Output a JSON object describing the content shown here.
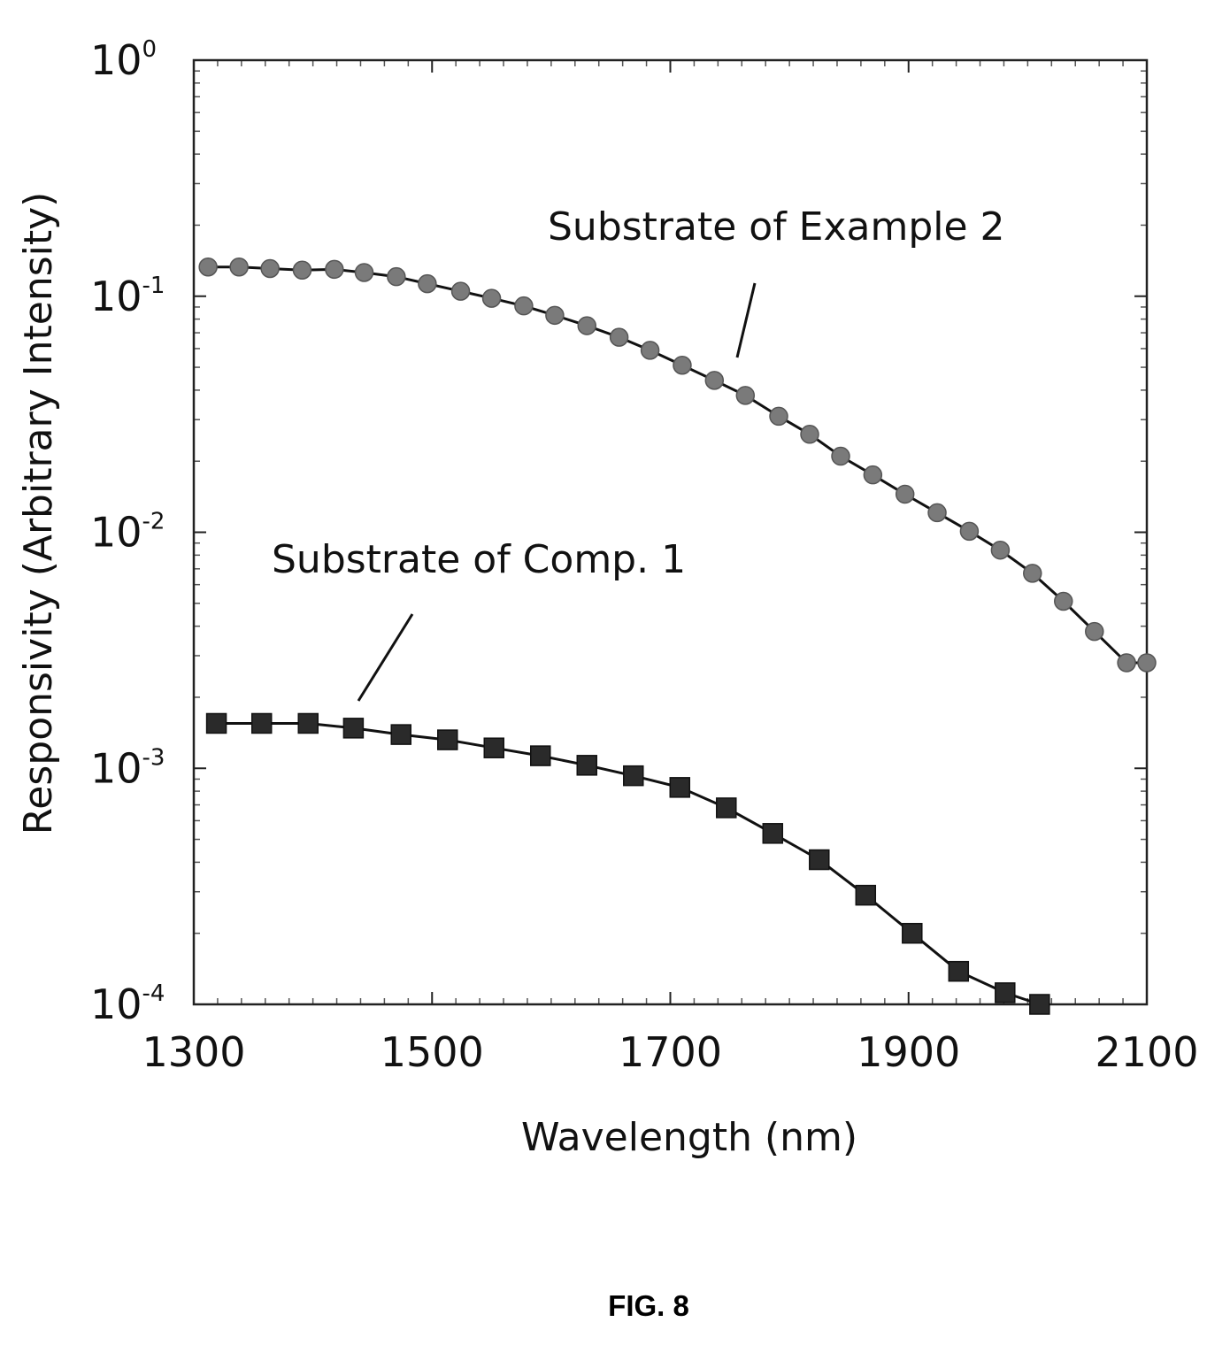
{
  "chart_data": {
    "type": "line",
    "xlabel": "Wavelength (nm)",
    "ylabel": "Responsivity (Arbitrary Intensity)",
    "xlim": [
      1300,
      2100
    ],
    "ylim": [
      0.0001,
      1
    ],
    "yscale": "log",
    "x_ticks": [
      "1300",
      "1500",
      "1700",
      "1900",
      "2100"
    ],
    "y_ticks": [
      {
        "base": "10",
        "exp": "0"
      },
      {
        "base": "10",
        "exp": "-1"
      },
      {
        "base": "10",
        "exp": "-2"
      },
      {
        "base": "10",
        "exp": "-3"
      },
      {
        "base": "10",
        "exp": "-4"
      }
    ],
    "grid": false,
    "series": [
      {
        "name": "Substrate of Example 2",
        "marker": "circle",
        "color": "#7a7a7a",
        "x": [
          1312,
          1338,
          1364,
          1391,
          1418,
          1443,
          1470,
          1496,
          1524,
          1550,
          1577,
          1603,
          1630,
          1657,
          1683,
          1710,
          1737,
          1763,
          1791,
          1817,
          1843,
          1870,
          1897,
          1924,
          1951,
          1977,
          2004,
          2030,
          2056,
          2083,
          2100
        ],
        "values": [
          0.133,
          0.133,
          0.131,
          0.129,
          0.13,
          0.126,
          0.121,
          0.113,
          0.105,
          0.098,
          0.091,
          0.083,
          0.075,
          0.067,
          0.059,
          0.051,
          0.044,
          0.038,
          0.031,
          0.026,
          0.021,
          0.0175,
          0.0145,
          0.0121,
          0.0101,
          0.0084,
          0.0067,
          0.0051,
          0.0038,
          0.0028,
          0.0028
        ]
      },
      {
        "name": "Substrate of Comp. 1",
        "marker": "square",
        "color": "#2a2a2a",
        "x": [
          1319,
          1357,
          1396,
          1434,
          1474,
          1513,
          1552,
          1591,
          1630,
          1669,
          1708,
          1747,
          1786,
          1825,
          1864,
          1903,
          1942,
          1981,
          2010
        ],
        "values": [
          0.00155,
          0.00155,
          0.00155,
          0.00148,
          0.00139,
          0.00132,
          0.00122,
          0.00113,
          0.00103,
          0.00093,
          0.00083,
          0.00068,
          0.00053,
          0.00041,
          0.00029,
          0.0002,
          0.000138,
          0.000112,
          0.0001
        ]
      }
    ],
    "annotations": [
      {
        "text": "Substrate of Example 2",
        "series": 0
      },
      {
        "text": "Substrate of Comp. 1",
        "series": 1
      }
    ]
  },
  "caption": "FIG. 8"
}
